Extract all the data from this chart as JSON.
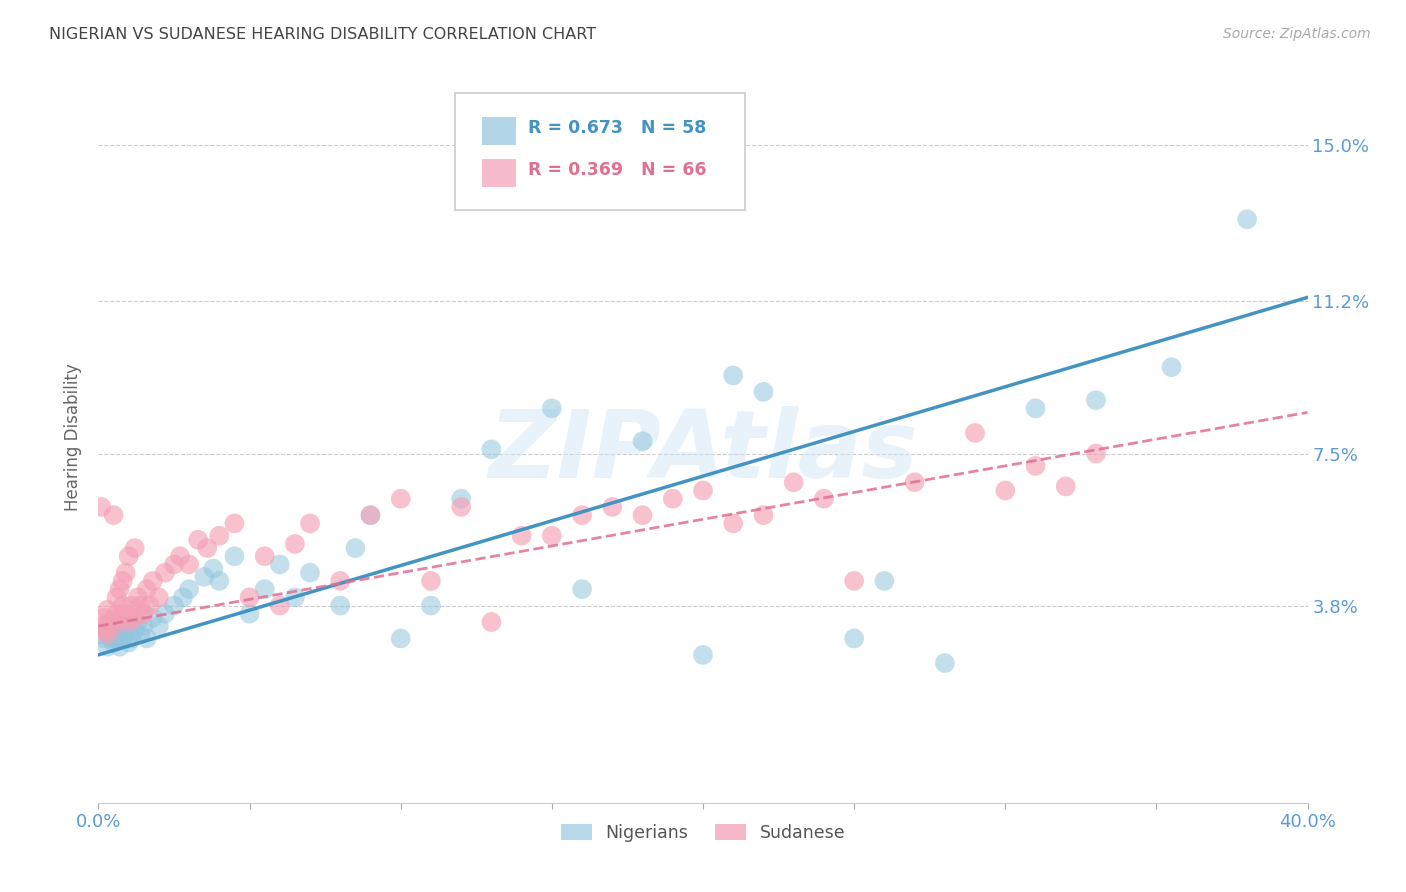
{
  "title": "NIGERIAN VS SUDANESE HEARING DISABILITY CORRELATION CHART",
  "source": "Source: ZipAtlas.com",
  "ylabel": "Hearing Disability",
  "ytick_labels": [
    "15.0%",
    "11.2%",
    "7.5%",
    "3.8%"
  ],
  "ytick_values": [
    0.15,
    0.112,
    0.075,
    0.038
  ],
  "xmin": 0.0,
  "xmax": 0.4,
  "ymin": -0.01,
  "ymax": 0.168,
  "nigerian_R": 0.673,
  "nigerian_N": 58,
  "sudanese_R": 0.369,
  "sudanese_N": 66,
  "nigerian_color": "#92c5de",
  "sudanese_color": "#f4a0b5",
  "nigerian_line_color": "#4393c3",
  "sudanese_line_color": "#e07090",
  "nigerian_x": [
    0.001,
    0.002,
    0.003,
    0.003,
    0.004,
    0.004,
    0.005,
    0.005,
    0.006,
    0.006,
    0.007,
    0.007,
    0.008,
    0.008,
    0.009,
    0.01,
    0.01,
    0.011,
    0.012,
    0.013,
    0.014,
    0.015,
    0.016,
    0.018,
    0.02,
    0.022,
    0.025,
    0.028,
    0.03,
    0.035,
    0.038,
    0.04,
    0.045,
    0.05,
    0.055,
    0.06,
    0.065,
    0.07,
    0.08,
    0.085,
    0.09,
    0.1,
    0.11,
    0.12,
    0.13,
    0.15,
    0.16,
    0.18,
    0.2,
    0.21,
    0.22,
    0.25,
    0.26,
    0.28,
    0.31,
    0.33,
    0.355,
    0.38
  ],
  "nigerian_y": [
    0.031,
    0.03,
    0.032,
    0.028,
    0.03,
    0.033,
    0.029,
    0.031,
    0.03,
    0.034,
    0.028,
    0.032,
    0.03,
    0.033,
    0.031,
    0.029,
    0.035,
    0.03,
    0.032,
    0.034,
    0.031,
    0.033,
    0.03,
    0.035,
    0.033,
    0.036,
    0.038,
    0.04,
    0.042,
    0.045,
    0.047,
    0.044,
    0.05,
    0.036,
    0.042,
    0.048,
    0.04,
    0.046,
    0.038,
    0.052,
    0.06,
    0.03,
    0.038,
    0.064,
    0.076,
    0.086,
    0.042,
    0.078,
    0.026,
    0.094,
    0.09,
    0.03,
    0.044,
    0.024,
    0.086,
    0.088,
    0.096,
    0.132
  ],
  "sudanese_x": [
    0.001,
    0.001,
    0.002,
    0.002,
    0.003,
    0.003,
    0.004,
    0.005,
    0.005,
    0.006,
    0.006,
    0.007,
    0.007,
    0.008,
    0.008,
    0.009,
    0.009,
    0.01,
    0.01,
    0.011,
    0.012,
    0.012,
    0.013,
    0.014,
    0.015,
    0.016,
    0.017,
    0.018,
    0.02,
    0.022,
    0.025,
    0.027,
    0.03,
    0.033,
    0.036,
    0.04,
    0.045,
    0.05,
    0.055,
    0.06,
    0.065,
    0.07,
    0.08,
    0.09,
    0.1,
    0.11,
    0.12,
    0.13,
    0.14,
    0.15,
    0.16,
    0.17,
    0.18,
    0.19,
    0.2,
    0.21,
    0.22,
    0.23,
    0.24,
    0.25,
    0.27,
    0.29,
    0.3,
    0.31,
    0.32,
    0.33
  ],
  "sudanese_y": [
    0.033,
    0.062,
    0.032,
    0.035,
    0.031,
    0.037,
    0.034,
    0.033,
    0.06,
    0.036,
    0.04,
    0.035,
    0.042,
    0.038,
    0.044,
    0.036,
    0.046,
    0.034,
    0.05,
    0.038,
    0.035,
    0.052,
    0.04,
    0.038,
    0.036,
    0.042,
    0.038,
    0.044,
    0.04,
    0.046,
    0.048,
    0.05,
    0.048,
    0.054,
    0.052,
    0.055,
    0.058,
    0.04,
    0.05,
    0.038,
    0.053,
    0.058,
    0.044,
    0.06,
    0.064,
    0.044,
    0.062,
    0.034,
    0.055,
    0.055,
    0.06,
    0.062,
    0.06,
    0.064,
    0.066,
    0.058,
    0.06,
    0.068,
    0.064,
    0.044,
    0.068,
    0.08,
    0.066,
    0.072,
    0.067,
    0.075
  ],
  "watermark_text": "ZIPAtlas",
  "background_color": "#ffffff",
  "grid_color": "#cccccc",
  "title_color": "#444444",
  "tick_label_color": "#5b9bd5"
}
